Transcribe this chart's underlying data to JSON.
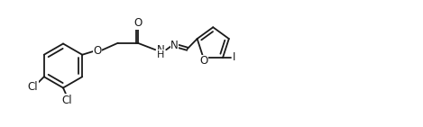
{
  "bg_color": "#ffffff",
  "line_color": "#1a1a1a",
  "line_width": 1.3,
  "font_size": 8.5,
  "atoms": {
    "O_ether": "O",
    "O_carbonyl": "O",
    "O_furan": "O",
    "N1": "N",
    "N2": "N",
    "H": "H",
    "Cl1": "Cl",
    "Cl2": "Cl",
    "I": "I"
  }
}
